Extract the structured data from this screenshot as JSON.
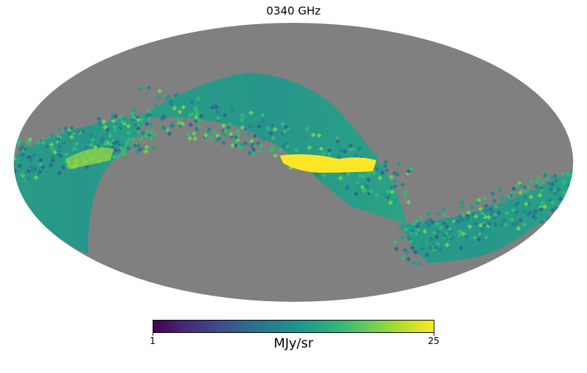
{
  "title": "0340 GHz",
  "colorbar": {
    "min_label": "1",
    "max_label": "25",
    "unit": "MJy/sr",
    "min": 1,
    "max": 25,
    "colormap": [
      "#440154",
      "#482878",
      "#3e4989",
      "#31688e",
      "#26828e",
      "#1f9e89",
      "#35b779",
      "#6ece58",
      "#b5de2b",
      "#fde725"
    ]
  },
  "map": {
    "projection": "mollweide",
    "masked_color": "#808080"
  }
}
